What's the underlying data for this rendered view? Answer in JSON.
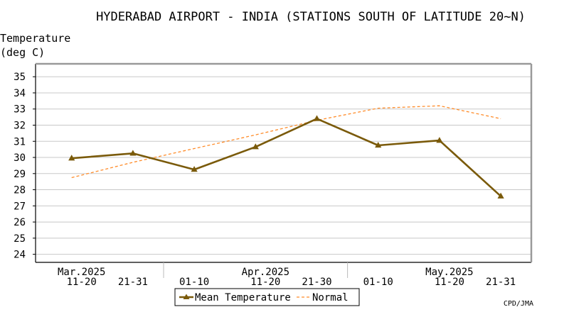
{
  "chart_data": {
    "type": "line",
    "title": "HYDERABAD AIRPORT - INDIA (STATIONS SOUTH OF LATITUDE 20~N)",
    "ylabel_line1": "Temperature",
    "ylabel_line2": "(deg C)",
    "ylim": [
      23.5,
      35.8
    ],
    "yticks": [
      24,
      25,
      26,
      27,
      28,
      29,
      30,
      31,
      32,
      33,
      34,
      35
    ],
    "grid": true,
    "categories": [
      "11-20",
      "21-31",
      "01-10",
      "11-20",
      "21-30",
      "01-10",
      "11-20",
      "21-31"
    ],
    "months": [
      {
        "label": "Mar.2025",
        "index": 0
      },
      {
        "label": "Apr.2025",
        "index": 3
      },
      {
        "label": "May.2025",
        "index": 6
      }
    ],
    "month_separators_after": [
      1,
      4
    ],
    "series": [
      {
        "name": "Mean Temperature",
        "color": "#7a5a0a",
        "style": "solid",
        "marker": "triangle",
        "values": [
          29.95,
          30.25,
          29.25,
          30.65,
          32.4,
          30.75,
          31.05,
          27.6
        ]
      },
      {
        "name": "Normal",
        "color": "#ff8c2a",
        "style": "dashed",
        "marker": "none",
        "values": [
          28.75,
          29.7,
          30.55,
          31.4,
          32.3,
          33.05,
          33.2,
          32.4
        ]
      }
    ],
    "legend": "bottom-center",
    "credit": "CPD/JMA"
  }
}
